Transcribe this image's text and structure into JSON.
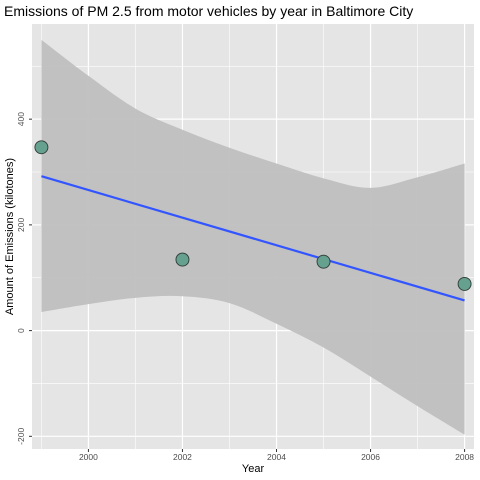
{
  "chart_data": {
    "type": "scatter",
    "title": "Emissions of PM 2.5 from motor vehicles by year in Baltimore City",
    "xlabel": "Year",
    "ylabel": "Amount of Emissions (kilotones)",
    "xlim": [
      1998.8,
      2008.2
    ],
    "ylim": [
      -224,
      580
    ],
    "x_ticks": [
      2000,
      2002,
      2004,
      2006,
      2008
    ],
    "y_ticks": [
      -200,
      0,
      200,
      400
    ],
    "grid": true,
    "legend": "none",
    "points": [
      {
        "x": 1999,
        "y": 346.8
      },
      {
        "x": 2002,
        "y": 134.3
      },
      {
        "x": 2005,
        "y": 130.4
      },
      {
        "x": 2008,
        "y": 88.3
      }
    ],
    "trend_line": {
      "method": "linear",
      "x": [
        1999,
        2008
      ],
      "y": [
        292,
        57
      ]
    },
    "confidence_band": {
      "x": [
        1999,
        2000,
        2001,
        2002,
        2003,
        2004,
        2005,
        2006,
        2007,
        2008
      ],
      "lower": [
        35,
        50,
        62,
        65,
        52,
        13,
        -32,
        -87,
        -143,
        -197
      ],
      "upper": [
        550,
        482,
        420,
        380,
        346,
        316,
        288,
        270,
        290,
        316
      ]
    },
    "colors": {
      "panel_background": "#e5e5e5",
      "grid": "#ffffff",
      "point_fill": "#66a08f",
      "point_stroke": "#2f3a36",
      "trend_line": "#3255ff",
      "band": "#bfbfbf"
    }
  }
}
